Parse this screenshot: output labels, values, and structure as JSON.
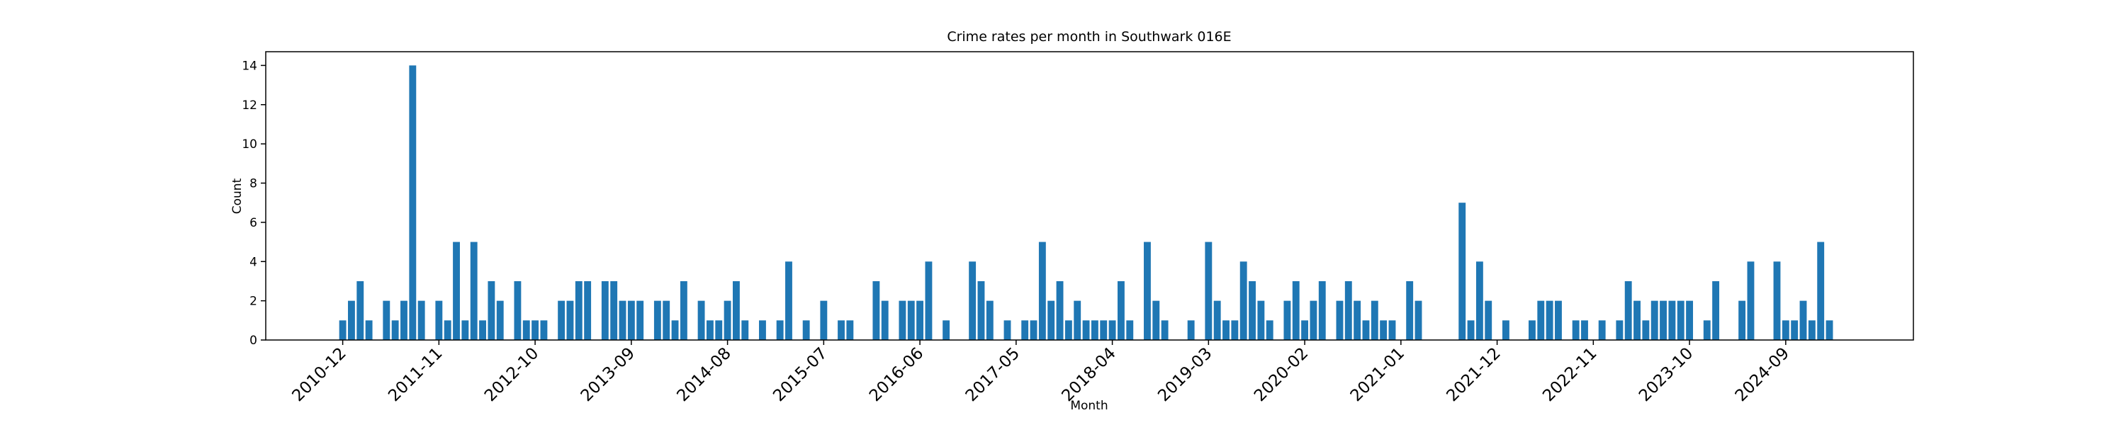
{
  "chart_data": {
    "type": "bar",
    "title": "Crime rates per month in Southwark 016E",
    "x_label": "Month",
    "y_label": "Count",
    "color": "#1f77b4",
    "grid": false,
    "categories": [
      "2010-12",
      null,
      null,
      null,
      null,
      null,
      null,
      null,
      null,
      null,
      null,
      "2011-11",
      null,
      null,
      null,
      null,
      null,
      null,
      null,
      null,
      null,
      null,
      "2012-10",
      null,
      null,
      null,
      null,
      null,
      null,
      null,
      null,
      null,
      null,
      "2013-09",
      null,
      null,
      null,
      null,
      null,
      null,
      null,
      null,
      null,
      null,
      "2014-08",
      null,
      null,
      null,
      null,
      null,
      null,
      null,
      null,
      null,
      null,
      "2015-07",
      null,
      null,
      null,
      null,
      null,
      null,
      null,
      null,
      null,
      null,
      "2016-06",
      null,
      null,
      null,
      null,
      null,
      null,
      null,
      null,
      null,
      null,
      "2017-05",
      null,
      null,
      null,
      null,
      null,
      null,
      null,
      null,
      null,
      null,
      "2018-04",
      null,
      null,
      null,
      null,
      null,
      null,
      null,
      null,
      null,
      null,
      "2019-03",
      null,
      null,
      null,
      null,
      null,
      null,
      null,
      null,
      null,
      null,
      "2020-02",
      null,
      null,
      null,
      null,
      null,
      null,
      null,
      null,
      null,
      null,
      "2021-01",
      null,
      null,
      null,
      null,
      null,
      null,
      null,
      null,
      null,
      null,
      "2021-12",
      null,
      null,
      null,
      null,
      null,
      null,
      null,
      null,
      null,
      null,
      "2022-11",
      null,
      null,
      null,
      null,
      null,
      null,
      null,
      null,
      null,
      null,
      "2023-10",
      null,
      null,
      null,
      null,
      null,
      null,
      null,
      null,
      null,
      null,
      "2024-09",
      null,
      null,
      null,
      null,
      null
    ],
    "values": [
      1,
      2,
      3,
      1,
      0,
      2,
      1,
      2,
      14,
      2,
      0,
      2,
      1,
      5,
      1,
      5,
      1,
      3,
      2,
      0,
      3,
      1,
      1,
      1,
      0,
      2,
      2,
      3,
      3,
      0,
      3,
      3,
      2,
      2,
      2,
      0,
      2,
      2,
      1,
      3,
      0,
      2,
      1,
      1,
      2,
      3,
      1,
      0,
      1,
      0,
      1,
      4,
      0,
      1,
      0,
      2,
      0,
      1,
      1,
      0,
      0,
      3,
      2,
      0,
      2,
      2,
      2,
      4,
      0,
      1,
      0,
      0,
      4,
      3,
      2,
      0,
      1,
      0,
      1,
      1,
      5,
      2,
      3,
      1,
      2,
      1,
      1,
      1,
      1,
      3,
      1,
      0,
      5,
      2,
      1,
      0,
      0,
      1,
      0,
      5,
      2,
      1,
      1,
      4,
      3,
      2,
      1,
      0,
      2,
      3,
      1,
      2,
      3,
      0,
      2,
      3,
      2,
      1,
      2,
      1,
      1,
      0,
      3,
      2,
      0,
      0,
      0,
      0,
      7,
      1,
      4,
      2,
      0,
      1,
      0,
      0,
      1,
      2,
      2,
      2,
      0,
      1,
      1,
      0,
      1,
      0,
      1,
      3,
      2,
      1,
      2,
      2,
      2,
      2,
      2,
      0,
      1,
      3,
      0,
      0,
      2,
      4,
      0,
      0,
      4,
      1,
      1,
      2,
      1,
      5,
      1
    ],
    "ylim": [
      0,
      14.7
    ],
    "yticks": [
      0,
      2,
      4,
      6,
      8,
      10,
      12,
      14
    ]
  }
}
